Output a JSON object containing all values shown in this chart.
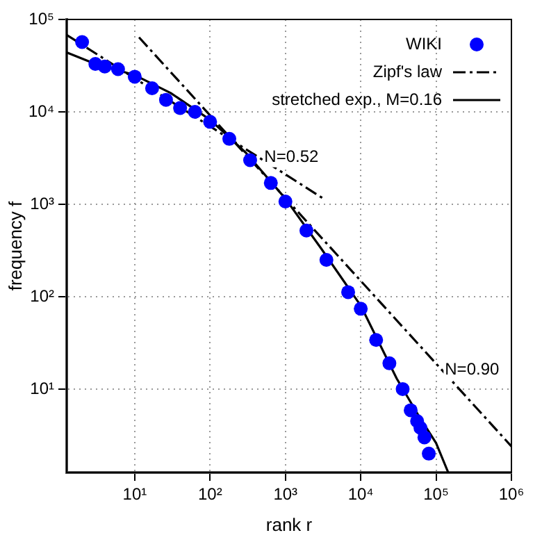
{
  "chart_data": {
    "type": "scatter",
    "xlabel": "rank r",
    "ylabel": "frequency f",
    "log": "xy",
    "grid": true,
    "legend": "top right",
    "xlim": [
      1.25,
      1000000
    ],
    "ylim": [
      1.25,
      100000
    ],
    "xticks": [
      {
        "value": 10,
        "label": "10¹"
      },
      {
        "value": 100,
        "label": "10²"
      },
      {
        "value": 1000,
        "label": "10³"
      },
      {
        "value": 10000,
        "label": "10⁴"
      },
      {
        "value": 100000,
        "label": "10⁵"
      },
      {
        "value": 1000000,
        "label": "10⁶"
      }
    ],
    "yticks": [
      {
        "value": 10,
        "label": "10¹"
      },
      {
        "value": 100,
        "label": "10²"
      },
      {
        "value": 1000,
        "label": "10³"
      },
      {
        "value": 10000,
        "label": "10⁴"
      },
      {
        "value": 100000,
        "label": "10⁵"
      }
    ],
    "series": [
      {
        "name": "WIKI",
        "marker": "circle",
        "color": "#0000ff",
        "x": [
          2,
          3,
          4,
          6,
          10,
          17,
          26,
          40,
          63,
          100,
          180,
          340,
          640,
          1000,
          1900,
          3500,
          6800,
          10000,
          16000,
          24000,
          36000,
          46000,
          56000,
          62000,
          70000,
          80000
        ],
        "values": [
          57000,
          33000,
          31000,
          29000,
          24000,
          18000,
          13500,
          11000,
          10000,
          7800,
          5100,
          3000,
          1700,
          1070,
          520,
          250,
          112,
          74,
          34,
          19,
          10,
          5.9,
          4.5,
          3.8,
          3,
          2
        ]
      },
      {
        "name": "Zipf's law",
        "type": "line",
        "marker": "none",
        "line_style": "dashed",
        "color": "#000000",
        "x": [
          1.25,
          3200
        ],
        "values": [
          68000,
          1150
        ]
      },
      {
        "type": "line",
        "marker": "none",
        "line_style": "dashed",
        "color": "#000000",
        "x": [
          11.4,
          1000000
        ],
        "values": [
          64000,
          2.4
        ]
      },
      {
        "name": "stretched exp., M=0.16",
        "type": "line",
        "marker": "none",
        "line_style": "solid",
        "color": "#000000",
        "x": [
          1.25,
          3,
          10,
          30,
          100,
          300,
          1000,
          3000,
          10000,
          30000,
          60000,
          100000,
          145000
        ],
        "values": [
          44000,
          33000,
          25000,
          16000,
          8200,
          3600,
          1150,
          330,
          80,
          13,
          5,
          2.6,
          1.25
        ]
      }
    ],
    "annotations": [
      {
        "text": "N=0.52",
        "x": 1200,
        "y": 3200
      },
      {
        "text": "N=0.90",
        "x": 300000,
        "y": 16
      }
    ]
  }
}
